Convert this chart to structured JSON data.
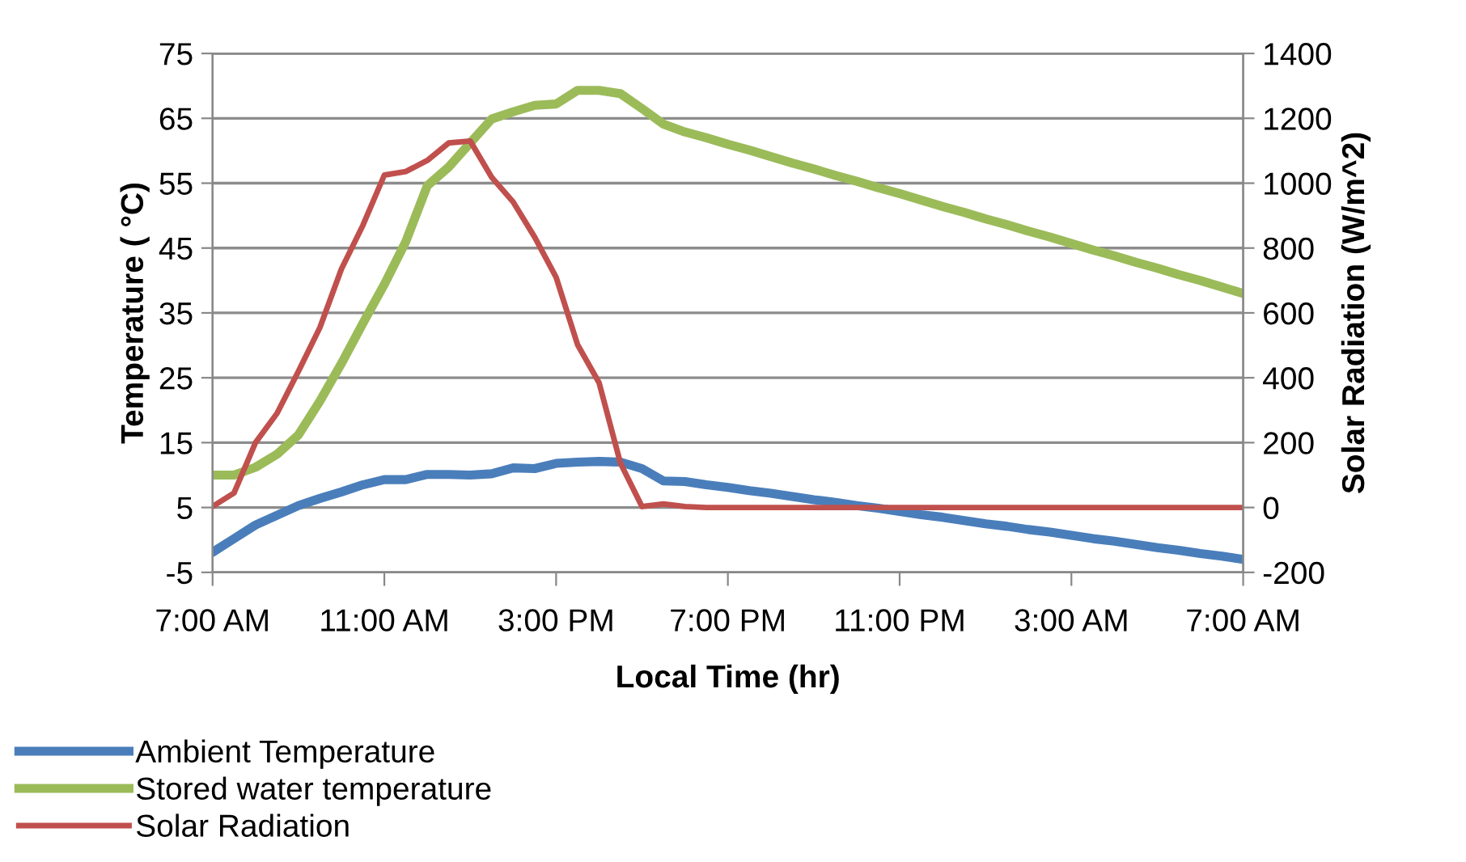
{
  "chart_data": {
    "type": "line",
    "xlabel": "Local Time (hr)",
    "ylabel": "Temperature ( °C)",
    "y2label": "Solar Radiation (W/m^2)",
    "categories": [
      "7:00 AM",
      null,
      null,
      null,
      null,
      null,
      null,
      null,
      "11:00 AM",
      null,
      null,
      null,
      null,
      null,
      null,
      null,
      "3:00 PM",
      null,
      null,
      null,
      null,
      null,
      null,
      null,
      "7:00 PM",
      null,
      null,
      null,
      null,
      null,
      null,
      null,
      "11:00 PM",
      null,
      null,
      null,
      null,
      null,
      null,
      null,
      "3:00 AM",
      null,
      null,
      null,
      null,
      null,
      null,
      null,
      "7:00 AM"
    ],
    "ylim": [
      -5,
      75
    ],
    "yticks": [
      -5,
      5,
      15,
      25,
      35,
      45,
      55,
      65,
      75
    ],
    "y2lim": [
      -200,
      1400
    ],
    "y2ticks": [
      -200,
      0,
      200,
      400,
      600,
      800,
      1000,
      1200,
      1400
    ],
    "grid": "y",
    "legend": "bottom",
    "marker": "none",
    "line_style": "solid",
    "series": [
      {
        "name": "Ambient Temperature",
        "color": "#4a7ebb",
        "values": [
          -1.9,
          0.2,
          2.3,
          3.8,
          5.3,
          6.4,
          7.4,
          8.5,
          9.3,
          9.3,
          10.1,
          10.1,
          10.0,
          10.2,
          11.1,
          11.0,
          11.8,
          12.0,
          12.1,
          12.0,
          11.0,
          9.1,
          9.0,
          8.5,
          8.1,
          7.6,
          7.2,
          6.7,
          6.2,
          5.8,
          5.3,
          4.9,
          4.4,
          3.9,
          3.5,
          3.0,
          2.5,
          2.1,
          1.6,
          1.2,
          0.7,
          0.2,
          -0.2,
          -0.7,
          -1.2,
          -1.6,
          -2.1,
          -2.5,
          -3.0
        ]
      },
      {
        "name": "Stored water temperature",
        "color": "#9bbb59",
        "values": [
          10.0,
          10.0,
          11.2,
          13.2,
          16.2,
          21.4,
          27.2,
          33.4,
          39.4,
          46.0,
          54.6,
          57.5,
          61.2,
          64.9,
          66.0,
          67.0,
          67.2,
          69.3,
          69.3,
          68.8,
          66.5,
          64.1,
          62.9,
          62.0,
          61.0,
          60.1,
          59.1,
          58.1,
          57.2,
          56.2,
          55.3,
          54.3,
          53.4,
          52.4,
          51.4,
          50.5,
          49.5,
          48.6,
          47.6,
          46.7,
          45.7,
          44.7,
          43.8,
          42.8,
          41.9,
          40.9,
          40.0,
          39.0,
          38.0
        ]
      },
      {
        "name": "Solar Radiation",
        "color": "#c0504d",
        "axis": "y2",
        "values": [
          3,
          45,
          200,
          290,
          420,
          555,
          735,
          870,
          1025,
          1036,
          1070,
          1124,
          1130,
          1018,
          942,
          834,
          710,
          502,
          385,
          136,
          3,
          11,
          3,
          0,
          0,
          0,
          0,
          0,
          0,
          0,
          0,
          0,
          0,
          0,
          0,
          0,
          0,
          0,
          0,
          0,
          0,
          0,
          0,
          0,
          0,
          0,
          0,
          0,
          0
        ]
      }
    ]
  }
}
